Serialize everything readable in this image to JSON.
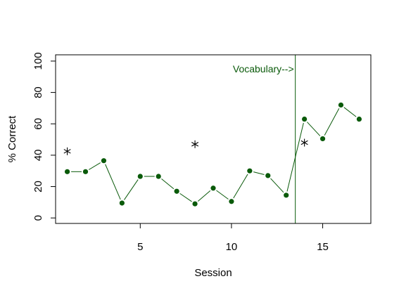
{
  "chart_data": {
    "type": "line",
    "title": "",
    "xlabel": "Session",
    "ylabel": "% Correct",
    "xlim": [
      0.36,
      17.64
    ],
    "ylim": [
      -3.5,
      104
    ],
    "x_ticks": [
      5,
      10,
      15
    ],
    "x_tick_labels": [
      "5",
      "10",
      "15"
    ],
    "y_ticks": [
      0,
      20,
      40,
      60,
      80,
      100
    ],
    "y_tick_labels": [
      "0",
      "20",
      "40",
      "60",
      "80",
      "100"
    ],
    "series": [
      {
        "color": "#0a5a0a",
        "marker": "filled-circle",
        "x": [
          1,
          2,
          3,
          4,
          5,
          6,
          7,
          8,
          9,
          10,
          11,
          12,
          13,
          14,
          15,
          16,
          17
        ],
        "y": [
          29.5,
          29.5,
          36.5,
          9.5,
          26.5,
          26.5,
          17,
          9,
          19,
          10.5,
          30,
          27,
          14.5,
          63,
          50.5,
          72,
          63
        ]
      }
    ],
    "extra_points": {
      "marker": "asterisk",
      "color": "#000000",
      "x": [
        1,
        8,
        14
      ],
      "y": [
        42.5,
        47,
        48
      ]
    },
    "phase_line": {
      "x": 13.5,
      "color": "#0a5a0a",
      "label": "Vocabulary-->"
    }
  }
}
